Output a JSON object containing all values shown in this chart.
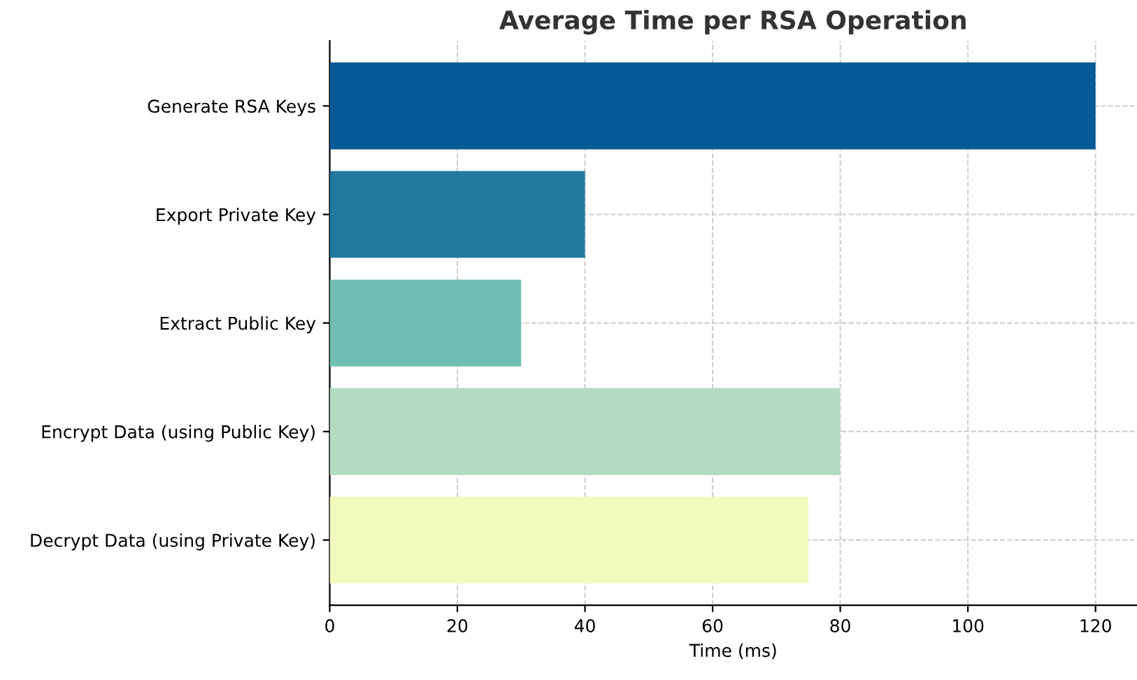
{
  "chart_data": {
    "type": "bar",
    "orientation": "horizontal",
    "title": "Average Time per RSA Operation",
    "xlabel": "Time (ms)",
    "categories": [
      "Generate RSA Keys",
      "Export Private Key",
      "Extract Public Key",
      "Encrypt Data (using Public Key)",
      "Decrypt Data (using Private Key)"
    ],
    "values": [
      120,
      40,
      30,
      80,
      75
    ],
    "colors": [
      "#045a94",
      "#22799e",
      "#6fc0b3",
      "#b3dcc2",
      "#f1fbbd"
    ],
    "xlim": [
      0,
      126.5
    ],
    "xticks": [
      0,
      20,
      40,
      60,
      80,
      100,
      120
    ],
    "grid": true
  }
}
